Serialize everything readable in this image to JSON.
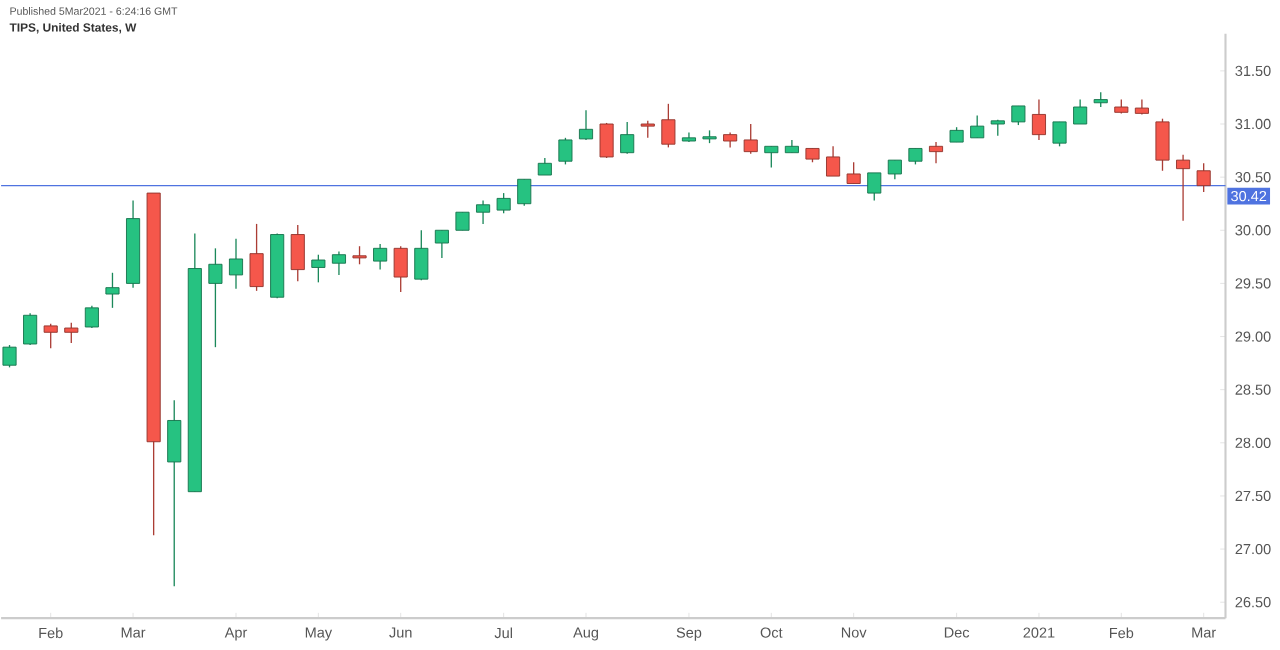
{
  "chart_data": {
    "type": "candlestick",
    "title": "TIPS, United States, W",
    "annotations": [
      "Published 5Mar2021 - 6:24:16 GMT"
    ],
    "categories": [
      null,
      null,
      "Feb",
      null,
      null,
      null,
      "Mar",
      null,
      null,
      null,
      null,
      "Apr",
      null,
      null,
      null,
      "May",
      null,
      null,
      null,
      "Jun",
      null,
      null,
      null,
      null,
      "Jul",
      null,
      null,
      null,
      "Aug",
      null,
      null,
      null,
      null,
      "Sep",
      null,
      null,
      null,
      "Oct",
      null,
      null,
      null,
      "Nov",
      null,
      null,
      null,
      null,
      "Dec",
      null,
      null,
      null,
      "2021",
      null,
      null,
      null,
      "Feb",
      null,
      null,
      null,
      "Mar"
    ],
    "ohlc": [
      [
        28.73,
        28.92,
        28.71,
        28.9
      ],
      [
        28.93,
        29.22,
        28.92,
        29.2
      ],
      [
        29.1,
        29.12,
        28.89,
        29.04
      ],
      [
        29.08,
        29.13,
        28.94,
        29.04
      ],
      [
        29.09,
        29.29,
        29.08,
        29.27
      ],
      [
        29.4,
        29.6,
        29.27,
        29.46
      ],
      [
        29.5,
        30.28,
        29.46,
        30.11
      ],
      [
        30.35,
        30.35,
        27.13,
        28.01
      ],
      [
        27.82,
        28.4,
        26.65,
        28.21
      ],
      [
        27.54,
        29.97,
        27.54,
        29.64
      ],
      [
        29.5,
        29.83,
        28.9,
        29.68
      ],
      [
        29.58,
        29.92,
        29.45,
        29.73
      ],
      [
        29.78,
        30.06,
        29.43,
        29.47
      ],
      [
        29.37,
        29.97,
        29.36,
        29.96
      ],
      [
        29.96,
        30.05,
        29.52,
        29.63
      ],
      [
        29.65,
        29.77,
        29.51,
        29.72
      ],
      [
        29.69,
        29.8,
        29.58,
        29.77
      ],
      [
        29.76,
        29.85,
        29.68,
        29.74
      ],
      [
        29.71,
        29.87,
        29.63,
        29.83
      ],
      [
        29.83,
        29.85,
        29.42,
        29.56
      ],
      [
        29.54,
        30.0,
        29.53,
        29.83
      ],
      [
        29.88,
        30.0,
        29.74,
        30.0
      ],
      [
        30.0,
        30.17,
        30.0,
        30.17
      ],
      [
        30.17,
        30.28,
        30.06,
        30.24
      ],
      [
        30.19,
        30.35,
        30.16,
        30.3
      ],
      [
        30.25,
        30.48,
        30.23,
        30.48
      ],
      [
        30.52,
        30.68,
        30.52,
        30.63
      ],
      [
        30.65,
        30.87,
        30.62,
        30.85
      ],
      [
        30.86,
        31.13,
        30.85,
        30.95
      ],
      [
        31.0,
        31.01,
        30.68,
        30.69
      ],
      [
        30.73,
        31.02,
        30.72,
        30.9
      ],
      [
        31.0,
        31.03,
        30.87,
        30.98
      ],
      [
        31.04,
        31.19,
        30.78,
        30.81
      ],
      [
        30.84,
        30.92,
        30.83,
        30.87
      ],
      [
        30.86,
        30.94,
        30.82,
        30.88
      ],
      [
        30.9,
        30.92,
        30.78,
        30.84
      ],
      [
        30.85,
        31.0,
        30.72,
        30.74
      ],
      [
        30.73,
        30.79,
        30.59,
        30.79
      ],
      [
        30.73,
        30.85,
        30.73,
        30.79
      ],
      [
        30.77,
        30.77,
        30.64,
        30.67
      ],
      [
        30.69,
        30.79,
        30.51,
        30.51
      ],
      [
        30.53,
        30.64,
        30.44,
        30.44
      ],
      [
        30.35,
        30.54,
        30.28,
        30.54
      ],
      [
        30.53,
        30.66,
        30.48,
        30.66
      ],
      [
        30.65,
        30.77,
        30.62,
        30.77
      ],
      [
        30.79,
        30.83,
        30.63,
        30.74
      ],
      [
        30.83,
        30.97,
        30.83,
        30.94
      ],
      [
        30.87,
        31.08,
        30.87,
        30.98
      ],
      [
        31.0,
        31.04,
        30.89,
        31.03
      ],
      [
        31.02,
        31.17,
        30.99,
        31.17
      ],
      [
        31.09,
        31.23,
        30.85,
        30.9
      ],
      [
        30.82,
        31.02,
        30.79,
        31.02
      ],
      [
        31.0,
        31.23,
        31.0,
        31.16
      ],
      [
        31.2,
        31.3,
        31.16,
        31.23
      ],
      [
        31.16,
        31.23,
        31.1,
        31.11
      ],
      [
        31.15,
        31.23,
        31.09,
        31.1
      ],
      [
        31.02,
        31.05,
        30.56,
        30.66
      ],
      [
        30.66,
        30.71,
        30.09,
        30.58
      ],
      [
        30.56,
        30.63,
        30.36,
        30.42
      ]
    ],
    "colors": [
      "#26c281",
      "#26c281",
      "#f5574b",
      "#f5574b",
      "#26c281",
      "#26c281",
      "#26c281",
      "#f5574b",
      "#26c281",
      "#26c281",
      "#26c281",
      "#26c281",
      "#f5574b",
      "#26c281",
      "#f5574b",
      "#26c281",
      "#26c281",
      "#f5574b",
      "#26c281",
      "#f5574b",
      "#26c281",
      "#26c281",
      "#26c281",
      "#26c281",
      "#26c281",
      "#26c281",
      "#26c281",
      "#26c281",
      "#26c281",
      "#f5574b",
      "#26c281",
      "#f5574b",
      "#f5574b",
      "#26c281",
      "#26c281",
      "#f5574b",
      "#f5574b",
      "#26c281",
      "#26c281",
      "#f5574b",
      "#f5574b",
      "#f5574b",
      "#26c281",
      "#26c281",
      "#26c281",
      "#f5574b",
      "#26c281",
      "#26c281",
      "#26c281",
      "#26c281",
      "#f5574b",
      "#26c281",
      "#26c281",
      "#26c281",
      "#f5574b",
      "#f5574b",
      "#f5574b",
      "#f5574b",
      "#f5574b"
    ],
    "ylim": [
      26.35,
      31.85
    ],
    "yticks": [
      {
        "value": 26.5,
        "label": "26.50"
      },
      {
        "value": 27,
        "label": "27.00"
      },
      {
        "value": 27.5,
        "label": "27.50"
      },
      {
        "value": 28,
        "label": "28.00"
      },
      {
        "value": 28.5,
        "label": "28.50"
      },
      {
        "value": 29,
        "label": "29.00"
      },
      {
        "value": 29.5,
        "label": "29.50"
      },
      {
        "value": 30,
        "label": "30.00"
      },
      {
        "value": 30.5,
        "label": "30.50"
      },
      {
        "value": 31,
        "label": "31.00"
      },
      {
        "value": 31.5,
        "label": "31.50"
      }
    ],
    "ref_lines": [
      {
        "axis": "y",
        "value": 30.42,
        "label": "30.42",
        "color": "#4f73e0"
      }
    ]
  }
}
